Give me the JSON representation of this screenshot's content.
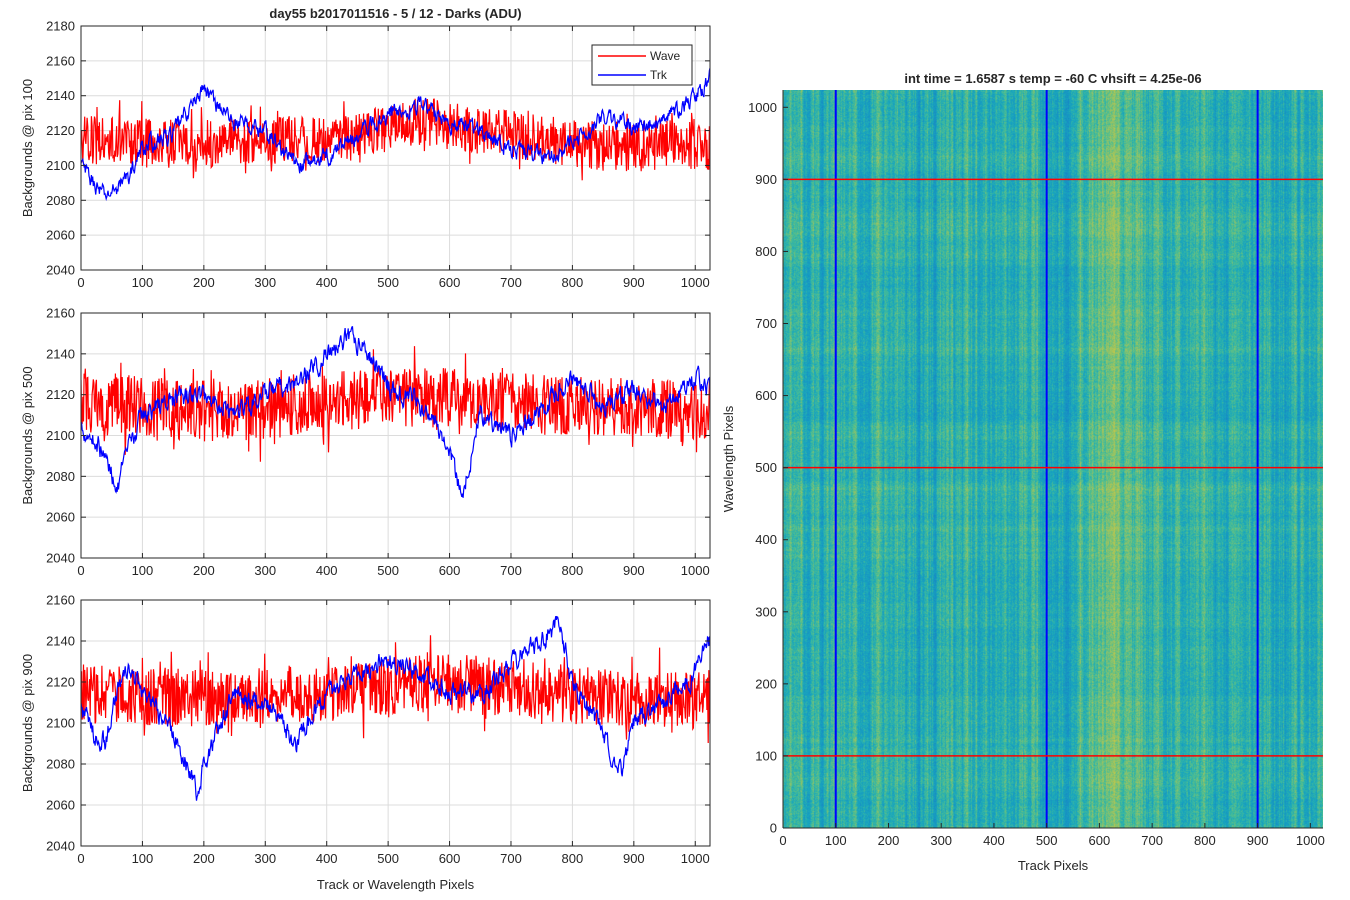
{
  "figure": {
    "title": "day55 b2017011516 - 5 / 12 - Darks (ADU)",
    "shared_xlabel": "Track or Wavelength Pixels"
  },
  "legend": {
    "location": "top-right",
    "entries": [
      "Wave",
      "Trk"
    ]
  },
  "colors": {
    "wave": "#ff0000",
    "trk": "#0000ff",
    "axis": "#262626",
    "grid": "#dcdcdc"
  },
  "chart_data": [
    {
      "type": "line",
      "title": "day55 b2017011516 - 5 / 12 - Darks (ADU)",
      "xlabel": "",
      "ylabel": "Backgrounds @ pix 100",
      "xlim": [
        0,
        1024
      ],
      "ylim": [
        2040,
        2180
      ],
      "xticks": [
        0,
        100,
        200,
        300,
        400,
        500,
        600,
        700,
        800,
        900,
        1000
      ],
      "yticks": [
        2040,
        2060,
        2080,
        2100,
        2120,
        2140,
        2160,
        2180
      ],
      "grid": true,
      "legend": "top-right",
      "series": [
        {
          "name": "Wave",
          "color": "#ff0000",
          "kind": "noisy",
          "x": [
            0,
            100,
            200,
            300,
            400,
            500,
            550,
            600,
            700,
            800,
            900,
            1000,
            1024
          ],
          "y": [
            2115,
            2113,
            2112,
            2114,
            2115,
            2122,
            2125,
            2123,
            2118,
            2112,
            2110,
            2112,
            2110
          ],
          "noise": 14
        },
        {
          "name": "Trk",
          "color": "#0000ff",
          "kind": "smooth",
          "x": [
            0,
            20,
            40,
            60,
            80,
            100,
            150,
            200,
            210,
            250,
            300,
            350,
            400,
            450,
            500,
            550,
            600,
            650,
            700,
            750,
            800,
            850,
            900,
            950,
            1000,
            1024
          ],
          "y": [
            2100,
            2090,
            2082,
            2088,
            2095,
            2110,
            2118,
            2145,
            2140,
            2125,
            2120,
            2100,
            2105,
            2118,
            2130,
            2135,
            2125,
            2120,
            2110,
            2105,
            2112,
            2128,
            2122,
            2125,
            2140,
            2150
          ],
          "noise": 4
        }
      ]
    },
    {
      "type": "line",
      "xlabel": "",
      "ylabel": "Backgrounds @ pix 500",
      "xlim": [
        0,
        1024
      ],
      "ylim": [
        2040,
        2160
      ],
      "xticks": [
        0,
        100,
        200,
        300,
        400,
        500,
        600,
        700,
        800,
        900,
        1000
      ],
      "yticks": [
        2040,
        2060,
        2080,
        2100,
        2120,
        2140,
        2160
      ],
      "grid": true,
      "series": [
        {
          "name": "Wave",
          "color": "#ff0000",
          "kind": "noisy",
          "x": [
            0,
            100,
            200,
            300,
            400,
            500,
            600,
            700,
            800,
            900,
            1000,
            1024
          ],
          "y": [
            2115,
            2114,
            2112,
            2113,
            2116,
            2120,
            2118,
            2116,
            2114,
            2113,
            2112,
            2112
          ],
          "noise": 15
        },
        {
          "name": "Trk",
          "color": "#0000ff",
          "kind": "smooth",
          "x": [
            0,
            30,
            60,
            80,
            100,
            150,
            200,
            250,
            300,
            350,
            400,
            440,
            470,
            500,
            550,
            600,
            620,
            650,
            700,
            750,
            800,
            850,
            900,
            950,
            1000,
            1024
          ],
          "y": [
            2105,
            2095,
            2075,
            2095,
            2110,
            2118,
            2120,
            2112,
            2120,
            2125,
            2140,
            2148,
            2140,
            2125,
            2115,
            2095,
            2070,
            2110,
            2100,
            2112,
            2128,
            2115,
            2122,
            2115,
            2130,
            2120
          ],
          "noise": 4
        }
      ]
    },
    {
      "type": "line",
      "xlabel": "Track or Wavelength Pixels",
      "ylabel": "Backgrounds @ pix 900",
      "xlim": [
        0,
        1024
      ],
      "ylim": [
        2040,
        2160
      ],
      "xticks": [
        0,
        100,
        200,
        300,
        400,
        500,
        600,
        700,
        800,
        900,
        1000
      ],
      "yticks": [
        2040,
        2060,
        2080,
        2100,
        2120,
        2140,
        2160
      ],
      "grid": true,
      "series": [
        {
          "name": "Wave",
          "color": "#ff0000",
          "kind": "noisy",
          "x": [
            0,
            100,
            200,
            300,
            400,
            500,
            600,
            700,
            800,
            900,
            1000,
            1024
          ],
          "y": [
            2115,
            2113,
            2112,
            2113,
            2114,
            2118,
            2120,
            2117,
            2113,
            2112,
            2112,
            2112
          ],
          "noise": 14
        },
        {
          "name": "Trk",
          "color": "#0000ff",
          "kind": "smooth",
          "x": [
            0,
            20,
            40,
            60,
            80,
            100,
            150,
            180,
            190,
            200,
            250,
            300,
            350,
            400,
            450,
            500,
            550,
            600,
            650,
            700,
            750,
            780,
            800,
            850,
            880,
            900,
            950,
            1000,
            1024
          ],
          "y": [
            2108,
            2095,
            2090,
            2118,
            2125,
            2115,
            2095,
            2075,
            2065,
            2080,
            2115,
            2110,
            2090,
            2115,
            2125,
            2132,
            2125,
            2115,
            2112,
            2130,
            2140,
            2150,
            2118,
            2095,
            2075,
            2100,
            2110,
            2125,
            2140
          ],
          "noise": 4
        }
      ]
    },
    {
      "type": "heatmap",
      "title": "int time = 1.6587 s    temp = -60 C    vhsift = 4.25e-06",
      "xlabel": "Track Pixels",
      "ylabel": "Wavelength Pixels",
      "xlim": [
        0,
        1024
      ],
      "ylim": [
        0,
        1024
      ],
      "xticks": [
        0,
        100,
        200,
        300,
        400,
        500,
        600,
        700,
        800,
        900,
        1000
      ],
      "yticks": [
        0,
        100,
        200,
        300,
        400,
        500,
        600,
        700,
        800,
        900,
        1000
      ],
      "colormap": "parula",
      "vertical_markers": {
        "color": "#0000ff",
        "x": [
          100,
          500,
          900
        ]
      },
      "horizontal_markers": {
        "color": "#ff0000",
        "y": [
          100,
          500,
          900
        ]
      },
      "bright_band_x": [
        520,
        700
      ]
    }
  ]
}
